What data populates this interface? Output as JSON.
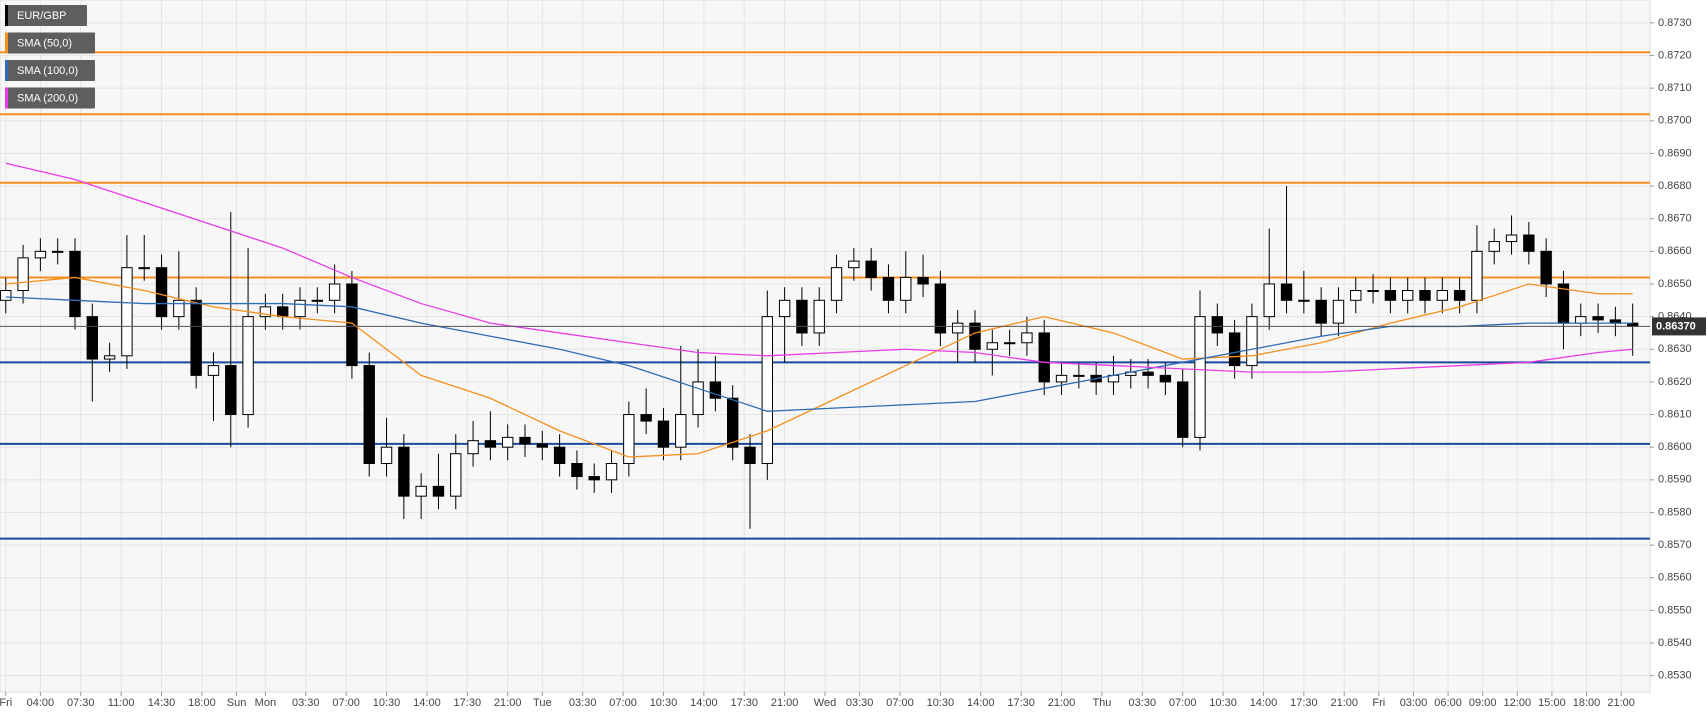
{
  "chart_data": {
    "type": "candlestick",
    "name": "EUR/GBP",
    "color": "#000000",
    "grid": true,
    "x": [
      0,
      3,
      6,
      9,
      12,
      15,
      18,
      21,
      24,
      27,
      30,
      33,
      36,
      39,
      42,
      45,
      48,
      51,
      54,
      57,
      60,
      63,
      66,
      69,
      72,
      75,
      78,
      81,
      84,
      87,
      90,
      93,
      96,
      99,
      102,
      105,
      108,
      111,
      114,
      117,
      120,
      123,
      126,
      129,
      132,
      135,
      138,
      141,
      144,
      147,
      150,
      153,
      156,
      159,
      162,
      165,
      168,
      171,
      174,
      177,
      180,
      183,
      186,
      189,
      192,
      195,
      198,
      201,
      204,
      207,
      210,
      213,
      216,
      219,
      222,
      225,
      228,
      231,
      234,
      237,
      240,
      243,
      246,
      249,
      252,
      255,
      258,
      261,
      264,
      267,
      270,
      273,
      276,
      279,
      282
    ],
    "open": [
      0.8645,
      0.8648,
      0.8658,
      0.866,
      0.866,
      0.864,
      0.8627,
      0.8628,
      0.8655,
      0.8655,
      0.864,
      0.8645,
      0.8622,
      0.8625,
      0.861,
      0.864,
      0.8643,
      0.864,
      0.8645,
      0.8645,
      0.865,
      0.8625,
      0.8595,
      0.86,
      0.8585,
      0.8588,
      0.8585,
      0.8598,
      0.8602,
      0.86,
      0.8603,
      0.8601,
      0.86,
      0.8595,
      0.8591,
      0.859,
      0.8595,
      0.861,
      0.8608,
      0.86,
      0.861,
      0.862,
      0.8615,
      0.86,
      0.8595,
      0.864,
      0.8645,
      0.8635,
      0.8645,
      0.8655,
      0.8657,
      0.8652,
      0.8645,
      0.8652,
      0.865,
      0.8635,
      0.8638,
      0.863,
      0.8632,
      0.8632,
      0.8635,
      0.862,
      0.8622,
      0.8622,
      0.862,
      0.8622,
      0.8623,
      0.8622,
      0.862,
      0.8603,
      0.864,
      0.8635,
      0.8625,
      0.864,
      0.865,
      0.8645,
      0.8645,
      0.8638,
      0.8645,
      0.8648,
      0.8648,
      0.8645,
      0.8648,
      0.8645,
      0.8648,
      0.8645,
      0.866,
      0.8663,
      0.8665,
      0.866,
      0.865,
      0.8638,
      0.864,
      0.8639,
      0.8638
    ],
    "high": [
      0.8652,
      0.8662,
      0.8664,
      0.8664,
      0.8664,
      0.8644,
      0.8632,
      0.8665,
      0.8665,
      0.8659,
      0.866,
      0.8649,
      0.8629,
      0.8672,
      0.8661,
      0.8647,
      0.8647,
      0.8649,
      0.8649,
      0.8656,
      0.8654,
      0.8629,
      0.8609,
      0.8604,
      0.8592,
      0.8598,
      0.8604,
      0.8608,
      0.8611,
      0.8607,
      0.8607,
      0.8605,
      0.8604,
      0.8599,
      0.8595,
      0.8599,
      0.8614,
      0.8618,
      0.8612,
      0.8631,
      0.863,
      0.8628,
      0.8619,
      0.8604,
      0.8648,
      0.8649,
      0.8649,
      0.8649,
      0.8659,
      0.8661,
      0.8661,
      0.8656,
      0.866,
      0.8659,
      0.8654,
      0.8642,
      0.8642,
      0.8636,
      0.8636,
      0.864,
      0.8639,
      0.8626,
      0.8626,
      0.8626,
      0.8628,
      0.8627,
      0.8627,
      0.8626,
      0.8624,
      0.8648,
      0.8644,
      0.8639,
      0.8644,
      0.8667,
      0.868,
      0.8654,
      0.8649,
      0.8649,
      0.8652,
      0.8653,
      0.8652,
      0.8652,
      0.8652,
      0.8652,
      0.8652,
      0.8668,
      0.8667,
      0.8671,
      0.8669,
      0.8664,
      0.8654,
      0.8644,
      0.8644,
      0.8643,
      0.8644
    ],
    "low": [
      0.8641,
      0.8644,
      0.8654,
      0.8656,
      0.8636,
      0.8614,
      0.8623,
      0.8624,
      0.8651,
      0.8636,
      0.8636,
      0.8618,
      0.8608,
      0.86,
      0.8606,
      0.8636,
      0.8636,
      0.8636,
      0.8641,
      0.8641,
      0.8621,
      0.8591,
      0.8591,
      0.8578,
      0.8578,
      0.8581,
      0.8581,
      0.8594,
      0.8596,
      0.8596,
      0.8597,
      0.8596,
      0.8591,
      0.8587,
      0.8586,
      0.8586,
      0.8591,
      0.8604,
      0.8596,
      0.8596,
      0.8606,
      0.8611,
      0.8596,
      0.8575,
      0.859,
      0.8626,
      0.8631,
      0.8631,
      0.8641,
      0.8651,
      0.8648,
      0.8641,
      0.8641,
      0.8646,
      0.8631,
      0.8626,
      0.8626,
      0.8622,
      0.8628,
      0.8628,
      0.8616,
      0.8616,
      0.8618,
      0.8616,
      0.8616,
      0.8618,
      0.8618,
      0.8616,
      0.86,
      0.8599,
      0.8631,
      0.8621,
      0.8621,
      0.8636,
      0.8641,
      0.8641,
      0.8634,
      0.8634,
      0.8641,
      0.8644,
      0.8641,
      0.8641,
      0.8641,
      0.8641,
      0.8641,
      0.8641,
      0.8656,
      0.8659,
      0.8656,
      0.8646,
      0.863,
      0.8634,
      0.8635,
      0.8634,
      0.8628
    ],
    "close": [
      0.8648,
      0.8658,
      0.866,
      0.866,
      0.864,
      0.8627,
      0.8628,
      0.8655,
      0.8655,
      0.864,
      0.8645,
      0.8622,
      0.8625,
      0.861,
      0.864,
      0.8643,
      0.864,
      0.8645,
      0.8645,
      0.865,
      0.8625,
      0.8595,
      0.86,
      0.8585,
      0.8588,
      0.8585,
      0.8598,
      0.8602,
      0.86,
      0.8603,
      0.8601,
      0.86,
      0.8595,
      0.8591,
      0.859,
      0.8595,
      0.861,
      0.8608,
      0.86,
      0.861,
      0.862,
      0.8615,
      0.86,
      0.8595,
      0.864,
      0.8645,
      0.8635,
      0.8645,
      0.8655,
      0.8657,
      0.8652,
      0.8645,
      0.8652,
      0.865,
      0.8635,
      0.8638,
      0.863,
      0.8632,
      0.8632,
      0.8635,
      0.862,
      0.8622,
      0.8622,
      0.862,
      0.8622,
      0.8623,
      0.8622,
      0.862,
      0.8603,
      0.864,
      0.8635,
      0.8625,
      0.864,
      0.865,
      0.8645,
      0.8645,
      0.8638,
      0.8645,
      0.8648,
      0.8648,
      0.8645,
      0.8648,
      0.8645,
      0.8648,
      0.8645,
      0.866,
      0.8663,
      0.8665,
      0.866,
      0.865,
      0.8638,
      0.864,
      0.8639,
      0.8638,
      0.8637
    ],
    "series": [
      {
        "name": "SMA (50,0)",
        "color": "#f5901e",
        "x": [
          0,
          12,
          24,
          36,
          48,
          60,
          72,
          84,
          96,
          108,
          120,
          132,
          144,
          156,
          168,
          180,
          192,
          204,
          216,
          228,
          240,
          252,
          264,
          276,
          282
        ],
        "values": [
          0.865,
          0.8652,
          0.8648,
          0.8643,
          0.864,
          0.8638,
          0.8622,
          0.8615,
          0.8605,
          0.8597,
          0.8598,
          0.8605,
          0.8615,
          0.8625,
          0.8635,
          0.864,
          0.8635,
          0.8627,
          0.8628,
          0.8632,
          0.8638,
          0.8643,
          0.865,
          0.8647,
          0.8647
        ]
      },
      {
        "name": "SMA (100,0)",
        "color": "#2f6db5",
        "x": [
          0,
          12,
          24,
          36,
          48,
          60,
          72,
          84,
          96,
          108,
          120,
          132,
          144,
          156,
          168,
          180,
          192,
          204,
          216,
          228,
          240,
          252,
          264,
          276,
          282
        ],
        "values": [
          0.8646,
          0.8645,
          0.8644,
          0.8644,
          0.8644,
          0.8643,
          0.8638,
          0.8634,
          0.863,
          0.8625,
          0.8618,
          0.8611,
          0.8612,
          0.8613,
          0.8614,
          0.8618,
          0.8622,
          0.8626,
          0.863,
          0.8634,
          0.8637,
          0.8637,
          0.8638,
          0.8638,
          0.8638
        ]
      },
      {
        "name": "SMA (200,0)",
        "color": "#e83ce8",
        "x": [
          0,
          12,
          24,
          36,
          48,
          60,
          72,
          84,
          96,
          108,
          120,
          132,
          144,
          156,
          168,
          180,
          192,
          204,
          216,
          228,
          240,
          252,
          264,
          276,
          282
        ],
        "values": [
          0.8687,
          0.8682,
          0.8675,
          0.8668,
          0.8661,
          0.8652,
          0.8644,
          0.8638,
          0.8635,
          0.8632,
          0.8629,
          0.8628,
          0.8629,
          0.863,
          0.8629,
          0.8626,
          0.8625,
          0.8624,
          0.8623,
          0.8623,
          0.8624,
          0.8625,
          0.8626,
          0.8629,
          0.863
        ]
      }
    ],
    "levels": [
      {
        "value": 0.8721,
        "color": "#f5901e"
      },
      {
        "value": 0.8702,
        "color": "#f5901e"
      },
      {
        "value": 0.8681,
        "color": "#f5901e"
      },
      {
        "value": 0.8652,
        "color": "#f5901e"
      },
      {
        "value": 0.8626,
        "color": "#1a4a9a"
      },
      {
        "value": 0.8601,
        "color": "#1a4a9a"
      },
      {
        "value": 0.8572,
        "color": "#1a4a9a"
      }
    ],
    "last_price": {
      "value": 0.8637,
      "label": "0.86370"
    },
    "ylim": [
      0.8525,
      0.8737
    ],
    "yticks": [
      {
        "value": 0.853,
        "label": "0.8530"
      },
      {
        "value": 0.854,
        "label": "0.8540"
      },
      {
        "value": 0.855,
        "label": "0.8550"
      },
      {
        "value": 0.856,
        "label": "0.8560"
      },
      {
        "value": 0.857,
        "label": "0.8570"
      },
      {
        "value": 0.858,
        "label": "0.8580"
      },
      {
        "value": 0.859,
        "label": "0.8590"
      },
      {
        "value": 0.86,
        "label": "0.8600"
      },
      {
        "value": 0.861,
        "label": "0.8610"
      },
      {
        "value": 0.862,
        "label": "0.8620"
      },
      {
        "value": 0.863,
        "label": "0.8630"
      },
      {
        "value": 0.864,
        "label": "0.8640"
      },
      {
        "value": 0.865,
        "label": "0.8650"
      },
      {
        "value": 0.866,
        "label": "0.8660"
      },
      {
        "value": 0.867,
        "label": "0.8670"
      },
      {
        "value": 0.868,
        "label": "0.8680"
      },
      {
        "value": 0.869,
        "label": "0.8690"
      },
      {
        "value": 0.87,
        "label": "0.8700"
      },
      {
        "value": 0.871,
        "label": "0.8710"
      },
      {
        "value": 0.872,
        "label": "0.8720"
      },
      {
        "value": 0.873,
        "label": "0.8730"
      }
    ],
    "xlim": [
      -1,
      285
    ],
    "xticks": [
      {
        "value": 0,
        "label": "Fri"
      },
      {
        "value": 6,
        "label": "04:00"
      },
      {
        "value": 13,
        "label": "07:30"
      },
      {
        "value": 20,
        "label": "11:00"
      },
      {
        "value": 27,
        "label": "14:30"
      },
      {
        "value": 34,
        "label": "18:00"
      },
      {
        "value": 40,
        "label": "Sun"
      },
      {
        "value": 45,
        "label": "Mon"
      },
      {
        "value": 52,
        "label": "03:30"
      },
      {
        "value": 59,
        "label": "07:00"
      },
      {
        "value": 66,
        "label": "10:30"
      },
      {
        "value": 73,
        "label": "14:00"
      },
      {
        "value": 80,
        "label": "17:30"
      },
      {
        "value": 87,
        "label": "21:00"
      },
      {
        "value": 93,
        "label": "Tue"
      },
      {
        "value": 100,
        "label": "03:30"
      },
      {
        "value": 107,
        "label": "07:00"
      },
      {
        "value": 114,
        "label": "10:30"
      },
      {
        "value": 121,
        "label": "14:00"
      },
      {
        "value": 128,
        "label": "17:30"
      },
      {
        "value": 135,
        "label": "21:00"
      },
      {
        "value": 142,
        "label": "Wed"
      },
      {
        "value": 148,
        "label": "03:30"
      },
      {
        "value": 155,
        "label": "07:00"
      },
      {
        "value": 162,
        "label": "10:30"
      },
      {
        "value": 169,
        "label": "14:00"
      },
      {
        "value": 176,
        "label": "17:30"
      },
      {
        "value": 183,
        "label": "21:00"
      },
      {
        "value": 190,
        "label": "Thu"
      },
      {
        "value": 197,
        "label": "03:30"
      },
      {
        "value": 204,
        "label": "07:00"
      },
      {
        "value": 211,
        "label": "10:30"
      },
      {
        "value": 218,
        "label": "14:00"
      },
      {
        "value": 225,
        "label": "17:30"
      },
      {
        "value": 232,
        "label": "21:00"
      },
      {
        "value": 238,
        "label": "Fri"
      },
      {
        "value": 244,
        "label": "03:00"
      },
      {
        "value": 250,
        "label": "06:00"
      },
      {
        "value": 256,
        "label": "09:00"
      },
      {
        "value": 262,
        "label": "12:00"
      },
      {
        "value": 268,
        "label": "15:00"
      },
      {
        "value": 274,
        "label": "18:00"
      },
      {
        "value": 280,
        "label": "21:00"
      }
    ]
  }
}
